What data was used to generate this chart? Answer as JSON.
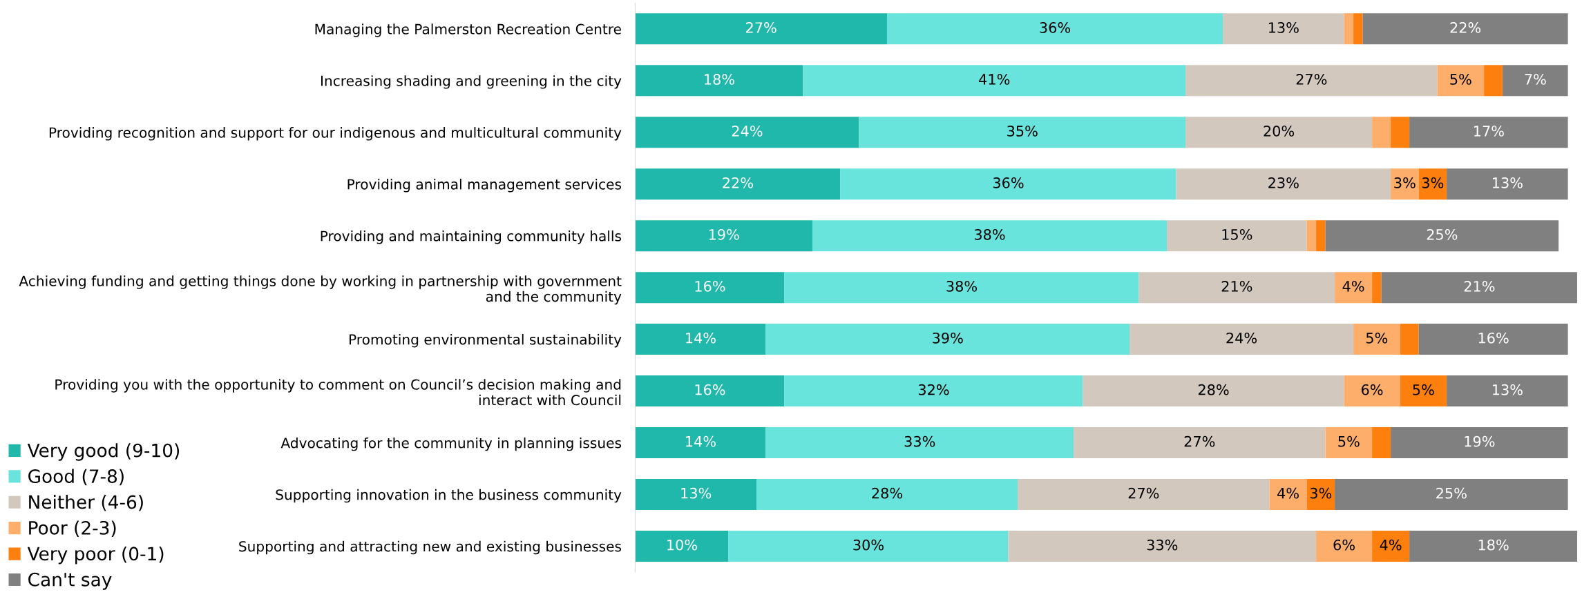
{
  "chart_data": {
    "type": "bar",
    "orientation": "horizontal",
    "stacked": true,
    "legend": "bottom left",
    "grid": false,
    "categories": [
      "Managing the Palmerston Recreation Centre",
      "Increasing shading and greening in the city",
      "Providing recognition and support for our indigenous and multicultural community",
      "Providing animal management services",
      "Providing and maintaining community halls",
      "Achieving funding and getting things done by working in partnership with government\nand the community",
      "Promoting environmental sustainability",
      "Providing you with the opportunity to comment on Council’s decision making and\ninteract with Council",
      "Advocating for the community in planning issues",
      "Supporting innovation in the business community",
      "Supporting and attracting new and existing businesses"
    ],
    "series": [
      {
        "name": "Very good (9-10)",
        "color": "#20b8ab",
        "values": [
          27,
          18,
          24,
          22,
          19,
          16,
          14,
          16,
          14,
          13,
          10
        ],
        "value_labels": [
          "27%",
          "18%",
          "24%",
          "22%",
          "19%",
          "16%",
          "14%",
          "16%",
          "14%",
          "13%",
          "10%"
        ]
      },
      {
        "name": "Good (7-8)",
        "color": "#68e4dc",
        "values": [
          36,
          41,
          35,
          36,
          38,
          38,
          39,
          32,
          33,
          28,
          30
        ],
        "value_labels": [
          "36%",
          "41%",
          "35%",
          "36%",
          "38%",
          "38%",
          "39%",
          "32%",
          "33%",
          "28%",
          "30%"
        ]
      },
      {
        "name": "Neither (4-6)",
        "color": "#d3c8bd",
        "values": [
          13,
          27,
          20,
          23,
          15,
          21,
          24,
          28,
          27,
          27,
          33
        ],
        "value_labels": [
          "13%",
          "27%",
          "20%",
          "23%",
          "15%",
          "21%",
          "24%",
          "28%",
          "27%",
          "27%",
          "33%"
        ]
      },
      {
        "name": "Poor (2-3)",
        "color": "#fdae6b",
        "values": [
          1,
          5,
          2,
          3,
          1,
          4,
          5,
          6,
          5,
          4,
          6
        ],
        "value_labels": [
          null,
          "5%",
          null,
          "3%",
          null,
          "4%",
          "5%",
          "6%",
          "5%",
          "4%",
          "6%"
        ]
      },
      {
        "name": "Very poor (0-1)",
        "color": "#fd7f0e",
        "values": [
          1,
          2,
          2,
          3,
          1,
          1,
          2,
          5,
          2,
          3,
          4
        ],
        "value_labels": [
          null,
          null,
          null,
          "3%",
          null,
          null,
          null,
          "5%",
          null,
          "3%",
          "4%"
        ]
      },
      {
        "name": "Can't say",
        "color": "#808080",
        "values": [
          22,
          7,
          17,
          13,
          25,
          21,
          16,
          13,
          19,
          25,
          18
        ],
        "value_labels": [
          "22%",
          "7%",
          "17%",
          "13%",
          "25%",
          "21%",
          "16%",
          "13%",
          "19%",
          "25%",
          "18%"
        ]
      }
    ]
  }
}
